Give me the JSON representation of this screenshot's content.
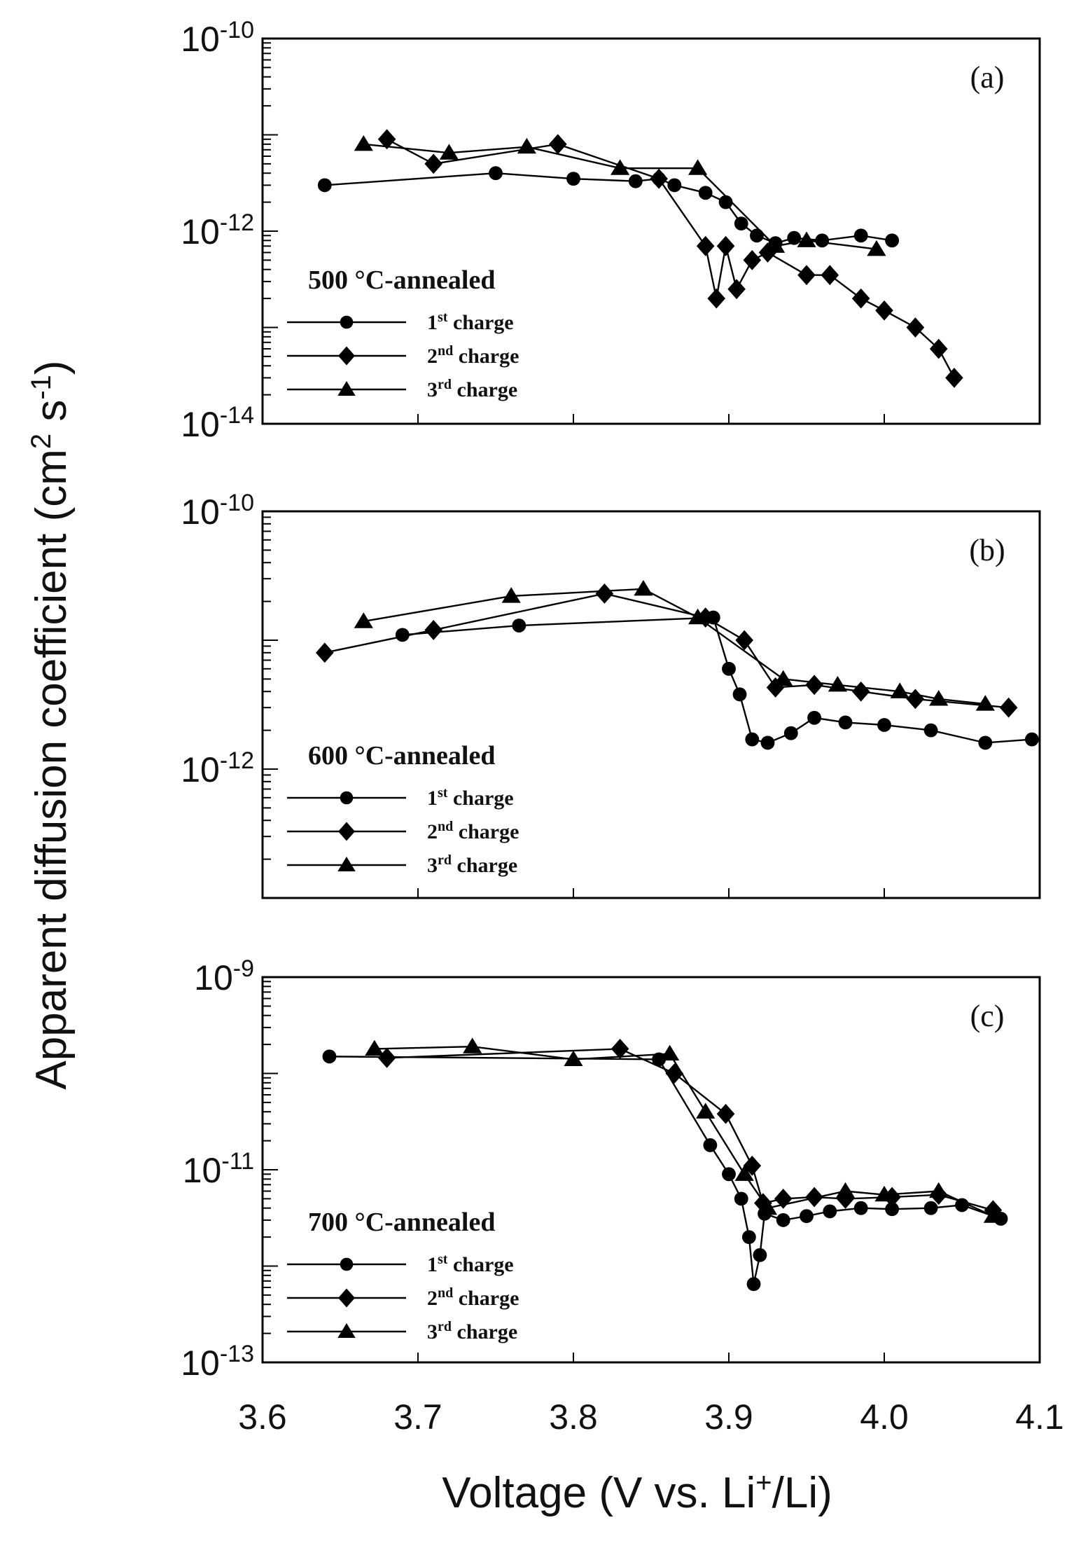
{
  "chart_data": {
    "type": "line",
    "xlabel": "Voltage (V vs. Li+/Li)",
    "ylabel": "Apparent diffusion coefficient (cm2 s-1)",
    "x_ticks": [
      "3.6",
      "3.7",
      "3.8",
      "3.9",
      "4.0",
      "4.1"
    ],
    "xlim": [
      3.6,
      4.1
    ],
    "y_scale": "log",
    "panels": [
      {
        "tag": "(a)",
        "legend_title": "500 °C-annealed",
        "ylim": [
          1e-14,
          1e-10
        ],
        "y_ticks": [
          "10-10",
          "10-12",
          "10-14"
        ],
        "series": [
          {
            "name": "1st charge",
            "marker": "circle",
            "x": [
              3.64,
              3.75,
              3.8,
              3.84,
              3.855,
              3.865,
              3.885,
              3.898,
              3.908,
              3.918,
              3.93,
              3.942,
              3.96,
              3.985,
              4.005
            ],
            "y": [
              3e-12,
              4e-12,
              3.5e-12,
              3.3e-12,
              3.5e-12,
              3e-12,
              2.5e-12,
              2e-12,
              1.2e-12,
              9e-13,
              7.5e-13,
              8.5e-13,
              8e-13,
              9e-13,
              8e-13
            ]
          },
          {
            "name": "2nd charge",
            "marker": "diamond",
            "x": [
              3.68,
              3.71,
              3.79,
              3.855,
              3.885,
              3.892,
              3.898,
              3.905,
              3.915,
              3.925,
              3.95,
              3.965,
              3.985,
              4.0,
              4.02,
              4.035,
              4.045
            ],
            "y": [
              9e-12,
              5e-12,
              8e-12,
              3.5e-12,
              7e-13,
              2e-13,
              7e-13,
              2.5e-13,
              5e-13,
              6e-13,
              3.5e-13,
              3.5e-13,
              2e-13,
              1.5e-13,
              1e-13,
              6e-14,
              3e-14
            ]
          },
          {
            "name": "3rd charge",
            "marker": "triangle",
            "x": [
              3.665,
              3.72,
              3.77,
              3.83,
              3.88,
              3.93,
              3.95,
              3.995
            ],
            "y": [
              8e-12,
              6.5e-12,
              7.5e-12,
              4.5e-12,
              4.5e-12,
              7e-13,
              8e-13,
              6.5e-13
            ]
          }
        ]
      },
      {
        "tag": "(b)",
        "legend_title": "600 °C-annealed",
        "ylim": [
          1e-13,
          1e-10
        ],
        "y_ticks": [
          "10-10",
          "10-12"
        ],
        "series": [
          {
            "name": "1st charge",
            "marker": "circle",
            "x": [
              3.69,
              3.765,
              3.89,
              3.9,
              3.907,
              3.915,
              3.925,
              3.94,
              3.955,
              3.975,
              4.0,
              4.03,
              4.065,
              4.095
            ],
            "y": [
              1.1e-11,
              1.3e-11,
              1.5e-11,
              6e-12,
              3.8e-12,
              1.7e-12,
              1.6e-12,
              1.9e-12,
              2.5e-12,
              2.3e-12,
              2.2e-12,
              2e-12,
              1.6e-12,
              1.7e-12
            ]
          },
          {
            "name": "2nd charge",
            "marker": "diamond",
            "x": [
              3.64,
              3.71,
              3.82,
              3.885,
              3.91,
              3.93,
              3.955,
              3.985,
              4.02,
              4.08
            ],
            "y": [
              8e-12,
              1.2e-11,
              2.3e-11,
              1.5e-11,
              1e-11,
              4.3e-12,
              4.5e-12,
              4e-12,
              3.5e-12,
              3e-12
            ]
          },
          {
            "name": "3rd charge",
            "marker": "triangle",
            "x": [
              3.665,
              3.76,
              3.845,
              3.88,
              3.935,
              3.97,
              4.01,
              4.035,
              4.065
            ],
            "y": [
              1.4e-11,
              2.2e-11,
              2.5e-11,
              1.5e-11,
              5e-12,
              4.5e-12,
              4e-12,
              3.5e-12,
              3.2e-12
            ]
          }
        ]
      },
      {
        "tag": "(c)",
        "legend_title": "700 °C-annealed",
        "ylim": [
          1e-13,
          1e-09
        ],
        "y_ticks": [
          "10-9",
          "10-11",
          "10-13"
        ],
        "series": [
          {
            "name": "1st charge",
            "marker": "circle",
            "x": [
              3.643,
              3.855,
              3.888,
              3.9,
              3.908,
              3.913,
              3.916,
              3.92,
              3.923,
              3.935,
              3.95,
              3.965,
              3.985,
              4.005,
              4.03,
              4.05,
              4.075
            ],
            "y": [
              1.5e-10,
              1.4e-10,
              1.8e-11,
              9e-12,
              5e-12,
              2e-12,
              6.5e-13,
              1.3e-12,
              3.5e-12,
              3e-12,
              3.3e-12,
              3.7e-12,
              4e-12,
              3.9e-12,
              4e-12,
              4.3e-12,
              3.1e-12
            ]
          },
          {
            "name": "2nd charge",
            "marker": "diamond",
            "x": [
              3.68,
              3.83,
              3.865,
              3.898,
              3.915,
              3.922,
              3.935,
              3.955,
              3.975,
              4.005,
              4.035,
              4.07
            ],
            "y": [
              1.45e-10,
              1.8e-10,
              1e-10,
              3.8e-11,
              1.1e-11,
              4.5e-12,
              5e-12,
              5.2e-12,
              5e-12,
              5.2e-12,
              5.5e-12,
              3.8e-12
            ]
          },
          {
            "name": "3rd charge",
            "marker": "triangle",
            "x": [
              3.672,
              3.735,
              3.8,
              3.862,
              3.885,
              3.91,
              3.925,
              3.975,
              4.0,
              4.035,
              4.07
            ],
            "y": [
              1.8e-10,
              1.9e-10,
              1.4e-10,
              1.6e-10,
              4e-11,
              9e-12,
              4e-12,
              6e-12,
              5.5e-12,
              6e-12,
              3.3e-12
            ]
          }
        ]
      }
    ]
  }
}
